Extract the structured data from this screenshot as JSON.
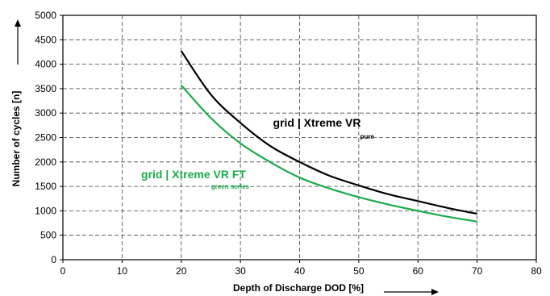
{
  "chart_data": {
    "type": "line",
    "xlabel": "Depth of Discharge DOD [%]",
    "ylabel": "Number of cycles [n]",
    "xlim": [
      0,
      80
    ],
    "ylim": [
      0,
      5000
    ],
    "x_ticks": [
      0,
      10,
      20,
      30,
      40,
      50,
      60,
      70,
      80
    ],
    "y_ticks": [
      0,
      500,
      1000,
      1500,
      2000,
      2500,
      3000,
      3500,
      4000,
      4500,
      5000
    ],
    "grid": true,
    "x": [
      20,
      25,
      30,
      35,
      40,
      45,
      50,
      55,
      60,
      65,
      70
    ],
    "series": [
      {
        "name": "grid | Xtreme VR",
        "subtitle": "pure",
        "color": "#000000",
        "values": [
          4270,
          3380,
          2800,
          2330,
          2000,
          1720,
          1520,
          1340,
          1200,
          1060,
          940
        ]
      },
      {
        "name": "grid | Xtreme VR FT",
        "subtitle": "green series",
        "color": "#1aab4b",
        "values": [
          3570,
          2900,
          2380,
          2000,
          1680,
          1460,
          1280,
          1130,
          1000,
          880,
          780
        ]
      }
    ]
  }
}
